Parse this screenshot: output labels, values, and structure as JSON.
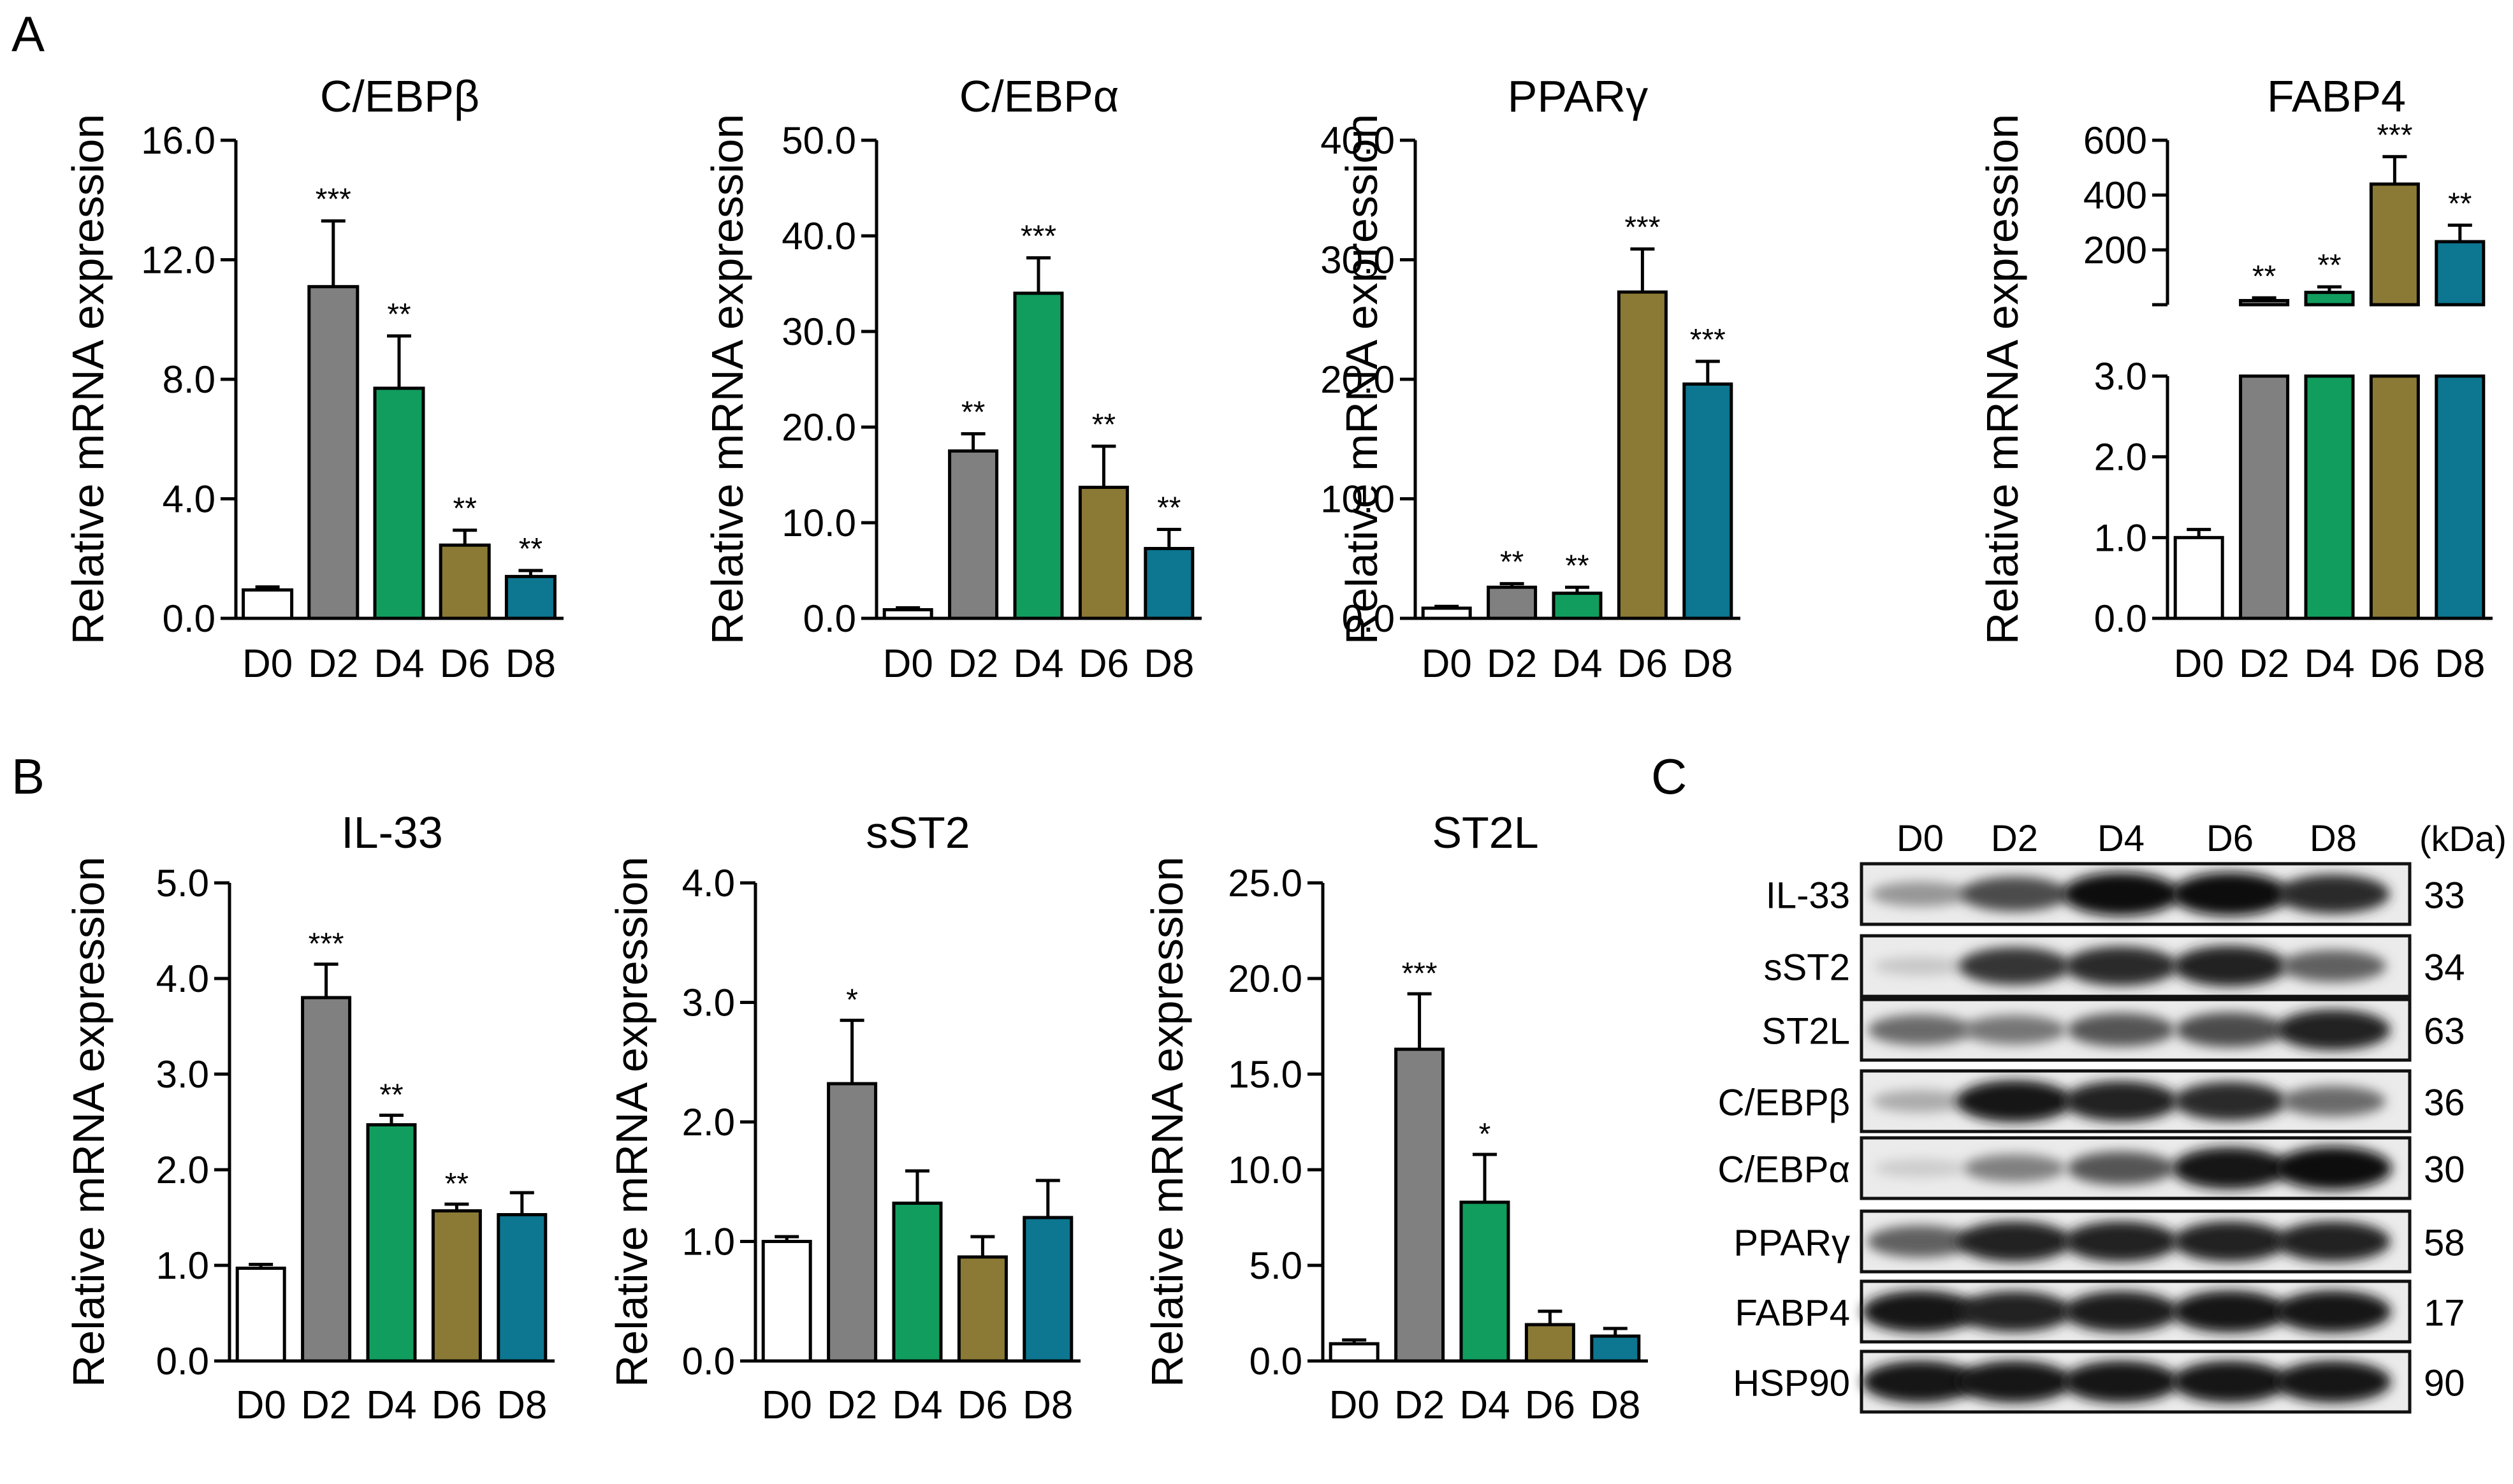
{
  "panel_labels": {
    "a": "A",
    "b": "B",
    "c": "C"
  },
  "colors": {
    "D0": "#ffffff",
    "D2": "#808080",
    "D4": "#119d5e",
    "D6": "#8b7a35",
    "D8": "#0d7690",
    "axis": "#000000"
  },
  "chart_data": [
    {
      "id": "cebpb",
      "type": "bar",
      "title": "C/EBPβ",
      "ylabel": "Relative mRNA expression",
      "categories": [
        "D0",
        "D2",
        "D4",
        "D6",
        "D8"
      ],
      "values": [
        0.95,
        11.1,
        7.7,
        2.45,
        1.4
      ],
      "errors": [
        0.1,
        2.2,
        1.75,
        0.5,
        0.2
      ],
      "sig": [
        "",
        "***",
        "**",
        "**",
        "**"
      ],
      "ylim": [
        0,
        16
      ],
      "ticks": [
        0,
        4,
        8,
        12,
        16
      ],
      "tick_labels": [
        "0.0",
        "4.0",
        "8.0",
        "12.0",
        "16.0"
      ]
    },
    {
      "id": "cebpa",
      "type": "bar",
      "title": "C/EBPα",
      "ylabel": "Relative mRNA expression",
      "categories": [
        "D0",
        "D2",
        "D4",
        "D6",
        "D8"
      ],
      "values": [
        0.9,
        17.5,
        34.0,
        13.7,
        7.3
      ],
      "errors": [
        0.2,
        1.8,
        3.7,
        4.3,
        2.0
      ],
      "sig": [
        "",
        "**",
        "***",
        "**",
        "**"
      ],
      "ylim": [
        0,
        50
      ],
      "ticks": [
        0,
        10,
        20,
        30,
        40,
        50
      ],
      "tick_labels": [
        "0.0",
        "10.0",
        "20.0",
        "30.0",
        "40.0",
        "50.0"
      ]
    },
    {
      "id": "pparg",
      "type": "bar",
      "title": "PPARγ",
      "ylabel": "Relative mRNA expression",
      "categories": [
        "D0",
        "D2",
        "D4",
        "D6",
        "D8"
      ],
      "values": [
        0.85,
        2.6,
        2.1,
        27.3,
        19.6
      ],
      "errors": [
        0.15,
        0.3,
        0.5,
        3.6,
        1.9
      ],
      "sig": [
        "",
        "**",
        "**",
        "***",
        "***"
      ],
      "ylim": [
        0,
        40
      ],
      "ticks": [
        0,
        10,
        20,
        30,
        40
      ],
      "tick_labels": [
        "0.0",
        "10.0",
        "20.0",
        "30.0",
        "40.0"
      ]
    },
    {
      "id": "fabp4",
      "type": "bar",
      "title": "FABP4",
      "ylabel": "Relative mRNA expression",
      "categories": [
        "D0",
        "D2",
        "D4",
        "D6",
        "D8"
      ],
      "values": [
        1.0,
        15,
        45,
        440,
        230
      ],
      "errors": [
        0.1,
        10,
        20,
        100,
        60
      ],
      "sig": [
        "",
        "**",
        "**",
        "***",
        "**"
      ],
      "broken_axis": {
        "lower": {
          "ylim": [
            0,
            3
          ],
          "ticks": [
            0,
            1,
            2,
            3
          ],
          "tick_labels": [
            "0.0",
            "1.0",
            "2.0",
            "3.0"
          ]
        },
        "upper": {
          "ylim": [
            0,
            600
          ],
          "ticks": [
            0,
            200,
            400,
            600
          ],
          "tick_labels": [
            "",
            "200",
            "400",
            "600"
          ]
        }
      }
    },
    {
      "id": "il33",
      "type": "bar",
      "title": "IL-33",
      "ylabel": "Relative mRNA expression",
      "categories": [
        "D0",
        "D2",
        "D4",
        "D6",
        "D8"
      ],
      "values": [
        0.97,
        3.8,
        2.47,
        1.57,
        1.53
      ],
      "errors": [
        0.04,
        0.35,
        0.1,
        0.07,
        0.23
      ],
      "sig": [
        "",
        "***",
        "**",
        "**",
        ""
      ],
      "ylim": [
        0,
        5
      ],
      "ticks": [
        0,
        1,
        2,
        3,
        4,
        5
      ],
      "tick_labels": [
        "0.0",
        "1.0",
        "2.0",
        "3.0",
        "4.0",
        "5.0"
      ]
    },
    {
      "id": "sst2",
      "type": "bar",
      "title": "sST2",
      "ylabel": "Relative mRNA expression",
      "categories": [
        "D0",
        "D2",
        "D4",
        "D6",
        "D8"
      ],
      "values": [
        1.0,
        2.32,
        1.32,
        0.87,
        1.2
      ],
      "errors": [
        0.04,
        0.53,
        0.27,
        0.17,
        0.31
      ],
      "sig": [
        "",
        "*",
        "",
        "",
        ""
      ],
      "ylim": [
        0,
        4
      ],
      "ticks": [
        0,
        1,
        2,
        3,
        4
      ],
      "tick_labels": [
        "0.0",
        "1.0",
        "2.0",
        "3.0",
        "4.0"
      ]
    },
    {
      "id": "st2l",
      "type": "bar",
      "title": "ST2L",
      "ylabel": "Relative mRNA expression",
      "categories": [
        "D0",
        "D2",
        "D4",
        "D6",
        "D8"
      ],
      "values": [
        0.9,
        16.3,
        8.3,
        1.9,
        1.3
      ],
      "errors": [
        0.2,
        2.9,
        2.5,
        0.7,
        0.4
      ],
      "sig": [
        "",
        "***",
        "*",
        "",
        ""
      ],
      "ylim": [
        0,
        25
      ],
      "ticks": [
        0,
        5,
        10,
        15,
        20,
        25
      ],
      "tick_labels": [
        "0.0",
        "5.0",
        "10.0",
        "15.0",
        "20.0",
        "25.0"
      ]
    }
  ],
  "western_blot": {
    "lanes": [
      "D0",
      "D2",
      "D4",
      "D6",
      "D8"
    ],
    "unit_label": "(kDa)",
    "rows": [
      {
        "protein": "IL-33",
        "kda": "33",
        "intensity": [
          0.35,
          0.7,
          1.0,
          1.0,
          0.85
        ]
      },
      {
        "protein": "sST2",
        "kda": "34",
        "intensity": [
          0.12,
          0.8,
          0.85,
          0.9,
          0.6
        ]
      },
      {
        "protein": "ST2L",
        "kda": "63",
        "intensity": [
          0.55,
          0.5,
          0.65,
          0.7,
          0.9
        ]
      },
      {
        "protein": "C/EBPβ",
        "kda": "36",
        "intensity": [
          0.25,
          0.95,
          0.9,
          0.85,
          0.55
        ]
      },
      {
        "protein": "C/EBPα",
        "kda": "30",
        "intensity": [
          0.1,
          0.45,
          0.65,
          0.95,
          1.0
        ]
      },
      {
        "protein": "PPARγ",
        "kda": "58",
        "intensity": [
          0.6,
          0.9,
          0.9,
          0.9,
          0.9
        ]
      },
      {
        "protein": "FABP4",
        "kda": "17",
        "intensity": [
          0.95,
          0.9,
          0.92,
          0.95,
          0.95
        ]
      },
      {
        "protein": "HSP90",
        "kda": "90",
        "intensity": [
          0.95,
          0.95,
          0.95,
          0.95,
          0.95
        ]
      }
    ]
  }
}
